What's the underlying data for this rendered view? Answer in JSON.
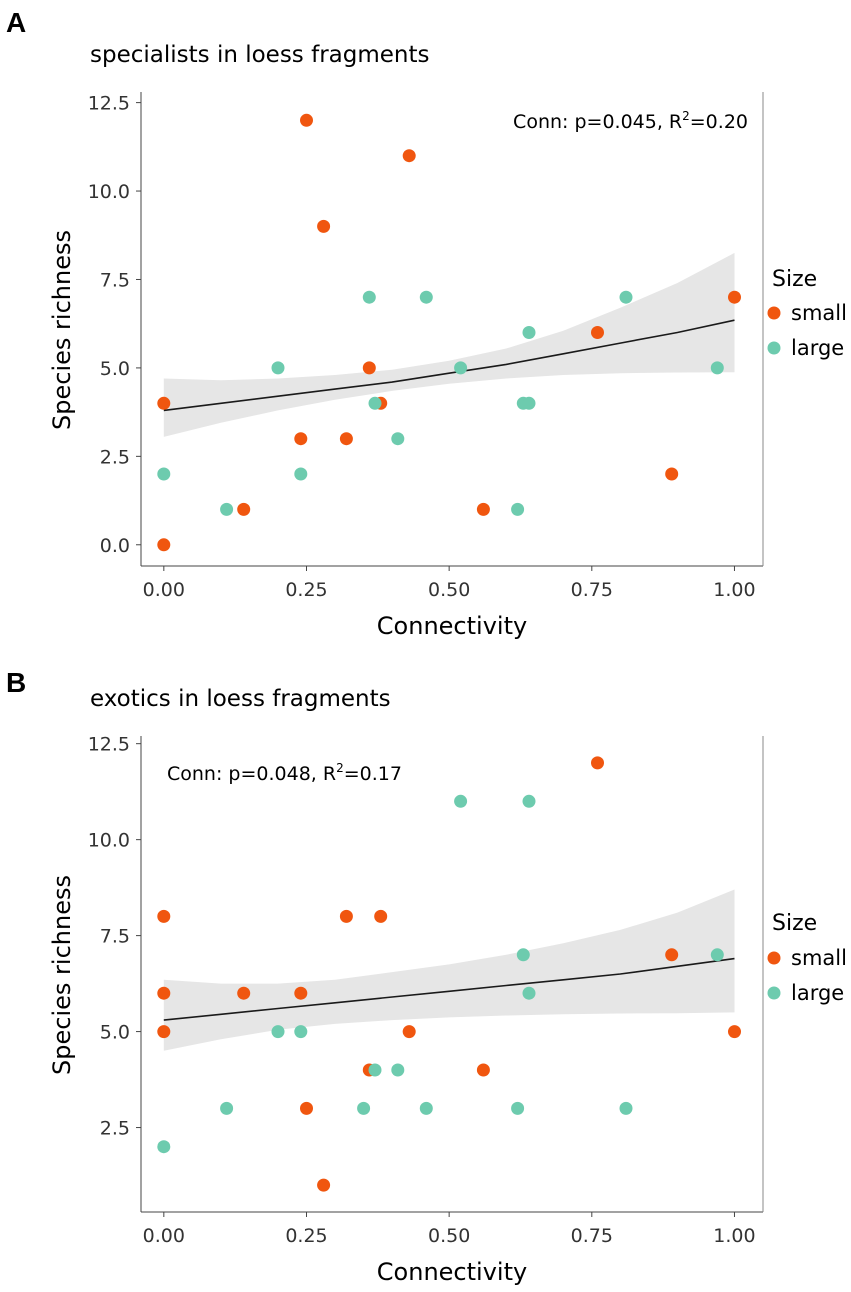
{
  "chart_data": [
    {
      "type": "scatter",
      "panel": "A",
      "title": "specialists in loess fragments",
      "xlabel": "Connectivity",
      "ylabel": "Species richness",
      "xlim": [
        -0.04,
        1.05
      ],
      "ylim": [
        -0.6,
        12.8
      ],
      "x_ticks": [
        0,
        0.25,
        0.5,
        0.75,
        1.0
      ],
      "x_tick_labels": [
        "0.00",
        "0.25",
        "0.50",
        "0.75",
        "1.00"
      ],
      "y_ticks": [
        0,
        2.5,
        5,
        7.5,
        10,
        12.5
      ],
      "y_tick_labels": [
        "0.0",
        "2.5",
        "5.0",
        "7.5",
        "10.0",
        "12.5"
      ],
      "annotation": {
        "text": "Conn: p=0.045, R",
        "sup": "2",
        "suffix": "=0.20",
        "position": "top-right"
      },
      "legend": {
        "title": "Size",
        "position": "right"
      },
      "series": [
        {
          "name": "small",
          "color": "#F0560F",
          "points": [
            [
              0.0,
              4
            ],
            [
              0.0,
              0
            ],
            [
              0.14,
              1
            ],
            [
              0.24,
              3
            ],
            [
              0.25,
              12
            ],
            [
              0.28,
              9
            ],
            [
              0.32,
              3
            ],
            [
              0.36,
              5
            ],
            [
              0.38,
              4
            ],
            [
              0.43,
              11
            ],
            [
              0.56,
              1
            ],
            [
              0.76,
              6
            ],
            [
              0.89,
              2
            ],
            [
              1.0,
              7
            ]
          ]
        },
        {
          "name": "large",
          "color": "#6DCBAE",
          "points": [
            [
              0.0,
              2
            ],
            [
              0.11,
              1
            ],
            [
              0.2,
              5
            ],
            [
              0.24,
              2
            ],
            [
              0.36,
              7
            ],
            [
              0.37,
              4
            ],
            [
              0.41,
              3
            ],
            [
              0.46,
              7
            ],
            [
              0.52,
              5
            ],
            [
              0.62,
              1
            ],
            [
              0.63,
              4
            ],
            [
              0.64,
              4
            ],
            [
              0.64,
              6
            ],
            [
              0.81,
              7
            ],
            [
              0.97,
              5
            ]
          ]
        }
      ],
      "fit": {
        "x": [
          0.0,
          0.1,
          0.2,
          0.3,
          0.4,
          0.5,
          0.6,
          0.7,
          0.8,
          0.9,
          1.0
        ],
        "y": [
          3.8,
          4.0,
          4.2,
          4.4,
          4.6,
          4.85,
          5.1,
          5.4,
          5.7,
          6.0,
          6.35
        ],
        "lower": [
          3.05,
          3.45,
          3.8,
          4.1,
          4.35,
          4.55,
          4.7,
          4.8,
          4.85,
          4.87,
          4.88
        ],
        "upper": [
          4.7,
          4.65,
          4.7,
          4.8,
          4.95,
          5.2,
          5.55,
          6.05,
          6.7,
          7.4,
          8.25
        ]
      }
    },
    {
      "type": "scatter",
      "panel": "B",
      "title": "exotics in loess fragments",
      "xlabel": "Connectivity",
      "ylabel": "Species richness",
      "xlim": [
        -0.04,
        1.05
      ],
      "ylim": [
        0.3,
        12.7
      ],
      "x_ticks": [
        0,
        0.25,
        0.5,
        0.75,
        1.0
      ],
      "x_tick_labels": [
        "0.00",
        "0.25",
        "0.50",
        "0.75",
        "1.00"
      ],
      "y_ticks": [
        2.5,
        5,
        7.5,
        10,
        12.5
      ],
      "y_tick_labels": [
        "2.5",
        "5.0",
        "7.5",
        "10.0",
        "12.5"
      ],
      "annotation": {
        "text": "Conn: p=0.048, R",
        "sup": "2",
        "suffix": "=0.17",
        "position": "top-left"
      },
      "legend": {
        "title": "Size",
        "position": "right"
      },
      "series": [
        {
          "name": "small",
          "color": "#F0560F",
          "points": [
            [
              0.0,
              8
            ],
            [
              0.0,
              6
            ],
            [
              0.0,
              5
            ],
            [
              0.14,
              6
            ],
            [
              0.24,
              6
            ],
            [
              0.25,
              3
            ],
            [
              0.28,
              1
            ],
            [
              0.32,
              8
            ],
            [
              0.36,
              4
            ],
            [
              0.38,
              8
            ],
            [
              0.43,
              5
            ],
            [
              0.56,
              4
            ],
            [
              0.76,
              12
            ],
            [
              0.89,
              7
            ],
            [
              1.0,
              5
            ]
          ]
        },
        {
          "name": "large",
          "color": "#6DCBAE",
          "points": [
            [
              0.0,
              2
            ],
            [
              0.11,
              3
            ],
            [
              0.2,
              5
            ],
            [
              0.24,
              5
            ],
            [
              0.35,
              3
            ],
            [
              0.37,
              4
            ],
            [
              0.41,
              4
            ],
            [
              0.46,
              3
            ],
            [
              0.52,
              11
            ],
            [
              0.62,
              3
            ],
            [
              0.63,
              7
            ],
            [
              0.64,
              11
            ],
            [
              0.64,
              6
            ],
            [
              0.81,
              3
            ],
            [
              0.97,
              7
            ]
          ]
        }
      ],
      "fit": {
        "x": [
          0.0,
          0.1,
          0.2,
          0.3,
          0.4,
          0.5,
          0.6,
          0.7,
          0.8,
          0.9,
          1.0
        ],
        "y": [
          5.3,
          5.45,
          5.6,
          5.75,
          5.9,
          6.05,
          6.2,
          6.35,
          6.5,
          6.7,
          6.9
        ],
        "lower": [
          4.5,
          4.8,
          5.05,
          5.2,
          5.3,
          5.37,
          5.42,
          5.45,
          5.47,
          5.48,
          5.5
        ],
        "upper": [
          6.35,
          6.25,
          6.25,
          6.35,
          6.55,
          6.75,
          7.0,
          7.3,
          7.65,
          8.1,
          8.7
        ]
      }
    }
  ],
  "figure": {
    "panel_letters": [
      "A",
      "B"
    ]
  }
}
